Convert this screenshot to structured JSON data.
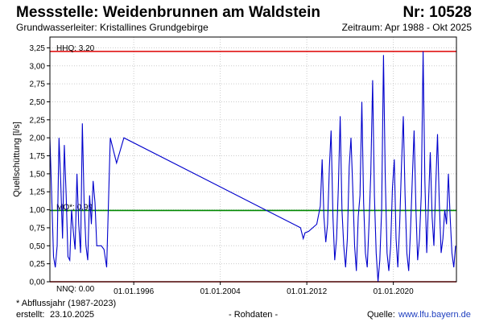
{
  "header": {
    "title": "Messstelle: Weidenbrunnen am Waldstein",
    "station_number": "Nr: 10528",
    "aquifer": "Grundwasserleiter: Kristallines Grundgebirge",
    "period": "Zeitraum: Apr 1988 - Okt 2025"
  },
  "footer": {
    "note": "* Abflussjahr (1987-2023)",
    "created_label": "erstellt:",
    "created_date": "23.10.2025",
    "raw_data": "- Rohdaten -",
    "source_label": "Quelle:",
    "source_url": "www.lfu.bayern.de"
  },
  "colors": {
    "series": "#0000cc",
    "hhq": "#dd0000",
    "nnq": "#dd0000",
    "mq": "#008800",
    "grid": "#cccccc"
  },
  "chart_data": {
    "type": "line",
    "title": "",
    "xlabel": "",
    "ylabel": "Quellschüttung [l/s]",
    "ylim": [
      0,
      3.4
    ],
    "xlim": [
      "1988-04-01",
      "2025-10-31"
    ],
    "yticks": [
      "0,00",
      "0,25",
      "0,50",
      "0,75",
      "1,00",
      "1,25",
      "1,50",
      "1,75",
      "2,00",
      "2,25",
      "2,50",
      "2,75",
      "3,00",
      "3,25"
    ],
    "yticks_values": [
      0,
      0.25,
      0.5,
      0.75,
      1.0,
      1.25,
      1.5,
      1.75,
      2.0,
      2.25,
      2.5,
      2.75,
      3.0,
      3.25
    ],
    "xticks": [
      "01.01.1996",
      "01.01.2004",
      "01.01.2012",
      "01.01.2020"
    ],
    "xticks_values": [
      "1996-01-01",
      "2004-01-01",
      "2012-01-01",
      "2020-01-01"
    ],
    "grid": true,
    "reference_lines": [
      {
        "label": "HHQ: 3.20",
        "value": 3.2
      },
      {
        "label": "MQ*: 0.99",
        "value": 0.99
      },
      {
        "label": "NNQ: 0.00",
        "value": 0.0
      }
    ],
    "series": [
      {
        "x": [
          "1988-04-01",
          "1988-06-01",
          "1988-08-01",
          "1988-10-01",
          "1988-12-01",
          "1989-02-01",
          "1989-04-01",
          "1989-06-01",
          "1989-08-01",
          "1989-10-01",
          "1989-12-01",
          "1990-02-01",
          "1990-04-01",
          "1990-06-01",
          "1990-08-01",
          "1990-10-01",
          "1990-12-01",
          "1991-02-01",
          "1991-04-01",
          "1991-06-01",
          "1991-08-01",
          "1991-10-01",
          "1991-12-01",
          "1992-02-01",
          "1992-04-01",
          "1992-06-01",
          "1992-08-01",
          "1992-10-01",
          "1993-01-01",
          "1993-04-01",
          "1993-07-01",
          "1993-11-01",
          "1994-06-01",
          "1995-02-01",
          "2011-06-01",
          "2011-09-01",
          "2011-11-01",
          "2012-03-01",
          "2012-12-01",
          "2013-04-01",
          "2013-06-01",
          "2013-08-01",
          "2013-10-01",
          "2013-12-01",
          "2014-02-01",
          "2014-04-01",
          "2014-06-01",
          "2014-08-01",
          "2014-10-01",
          "2014-12-01",
          "2015-02-01",
          "2015-04-01",
          "2015-06-01",
          "2015-08-01",
          "2015-10-01",
          "2015-12-01",
          "2016-02-01",
          "2016-04-01",
          "2016-06-01",
          "2016-08-01",
          "2016-10-01",
          "2016-12-01",
          "2017-02-01",
          "2017-04-01",
          "2017-06-01",
          "2017-08-01",
          "2017-10-01",
          "2017-12-01",
          "2018-02-01",
          "2018-04-01",
          "2018-06-01",
          "2018-08-01",
          "2018-10-01",
          "2018-12-01",
          "2019-02-01",
          "2019-04-01",
          "2019-06-01",
          "2019-08-01",
          "2019-10-01",
          "2019-12-01",
          "2020-02-01",
          "2020-04-01",
          "2020-06-01",
          "2020-08-01",
          "2020-10-01",
          "2020-12-01",
          "2021-02-01",
          "2021-04-01",
          "2021-06-01",
          "2021-08-01",
          "2021-10-01",
          "2021-12-01",
          "2022-02-01",
          "2022-04-01",
          "2022-06-01",
          "2022-08-01",
          "2022-10-01",
          "2022-12-01",
          "2023-02-01",
          "2023-04-01",
          "2023-06-01",
          "2023-08-01",
          "2023-10-01",
          "2023-12-01",
          "2024-02-01",
          "2024-04-01",
          "2024-06-01",
          "2024-08-01",
          "2024-10-01",
          "2024-12-01",
          "2025-02-01",
          "2025-04-01",
          "2025-06-01",
          "2025-08-01",
          "2025-10-01"
        ],
        "y": [
          2.0,
          1.2,
          0.35,
          0.2,
          0.5,
          2.0,
          1.4,
          0.6,
          1.9,
          1.2,
          0.35,
          0.3,
          1.0,
          0.7,
          0.45,
          1.5,
          0.8,
          0.4,
          2.2,
          1.1,
          0.5,
          0.3,
          1.2,
          0.8,
          1.4,
          1.1,
          0.5,
          0.5,
          0.5,
          0.45,
          0.2,
          2.0,
          1.65,
          2.0,
          0.75,
          0.6,
          0.68,
          0.7,
          0.8,
          1.05,
          1.7,
          0.9,
          0.55,
          0.8,
          1.6,
          2.1,
          0.9,
          0.3,
          0.6,
          1.3,
          2.3,
          1.0,
          0.5,
          0.2,
          0.6,
          1.6,
          2.0,
          1.3,
          0.5,
          0.15,
          0.9,
          1.2,
          2.5,
          1.1,
          0.4,
          0.2,
          0.8,
          1.5,
          2.8,
          1.2,
          0.4,
          0.0,
          0.3,
          1.0,
          3.15,
          1.5,
          0.4,
          0.15,
          0.5,
          1.3,
          1.7,
          0.6,
          0.2,
          0.8,
          1.6,
          2.3,
          1.2,
          0.4,
          0.15,
          0.7,
          1.4,
          2.1,
          1.0,
          0.3,
          0.6,
          1.2,
          3.2,
          1.4,
          0.4,
          1.1,
          1.8,
          0.9,
          0.5,
          1.3,
          2.05,
          1.1,
          0.4,
          0.6,
          1.0,
          0.8,
          1.5,
          0.9,
          0.4,
          0.2,
          0.5
        ]
      }
    ]
  }
}
